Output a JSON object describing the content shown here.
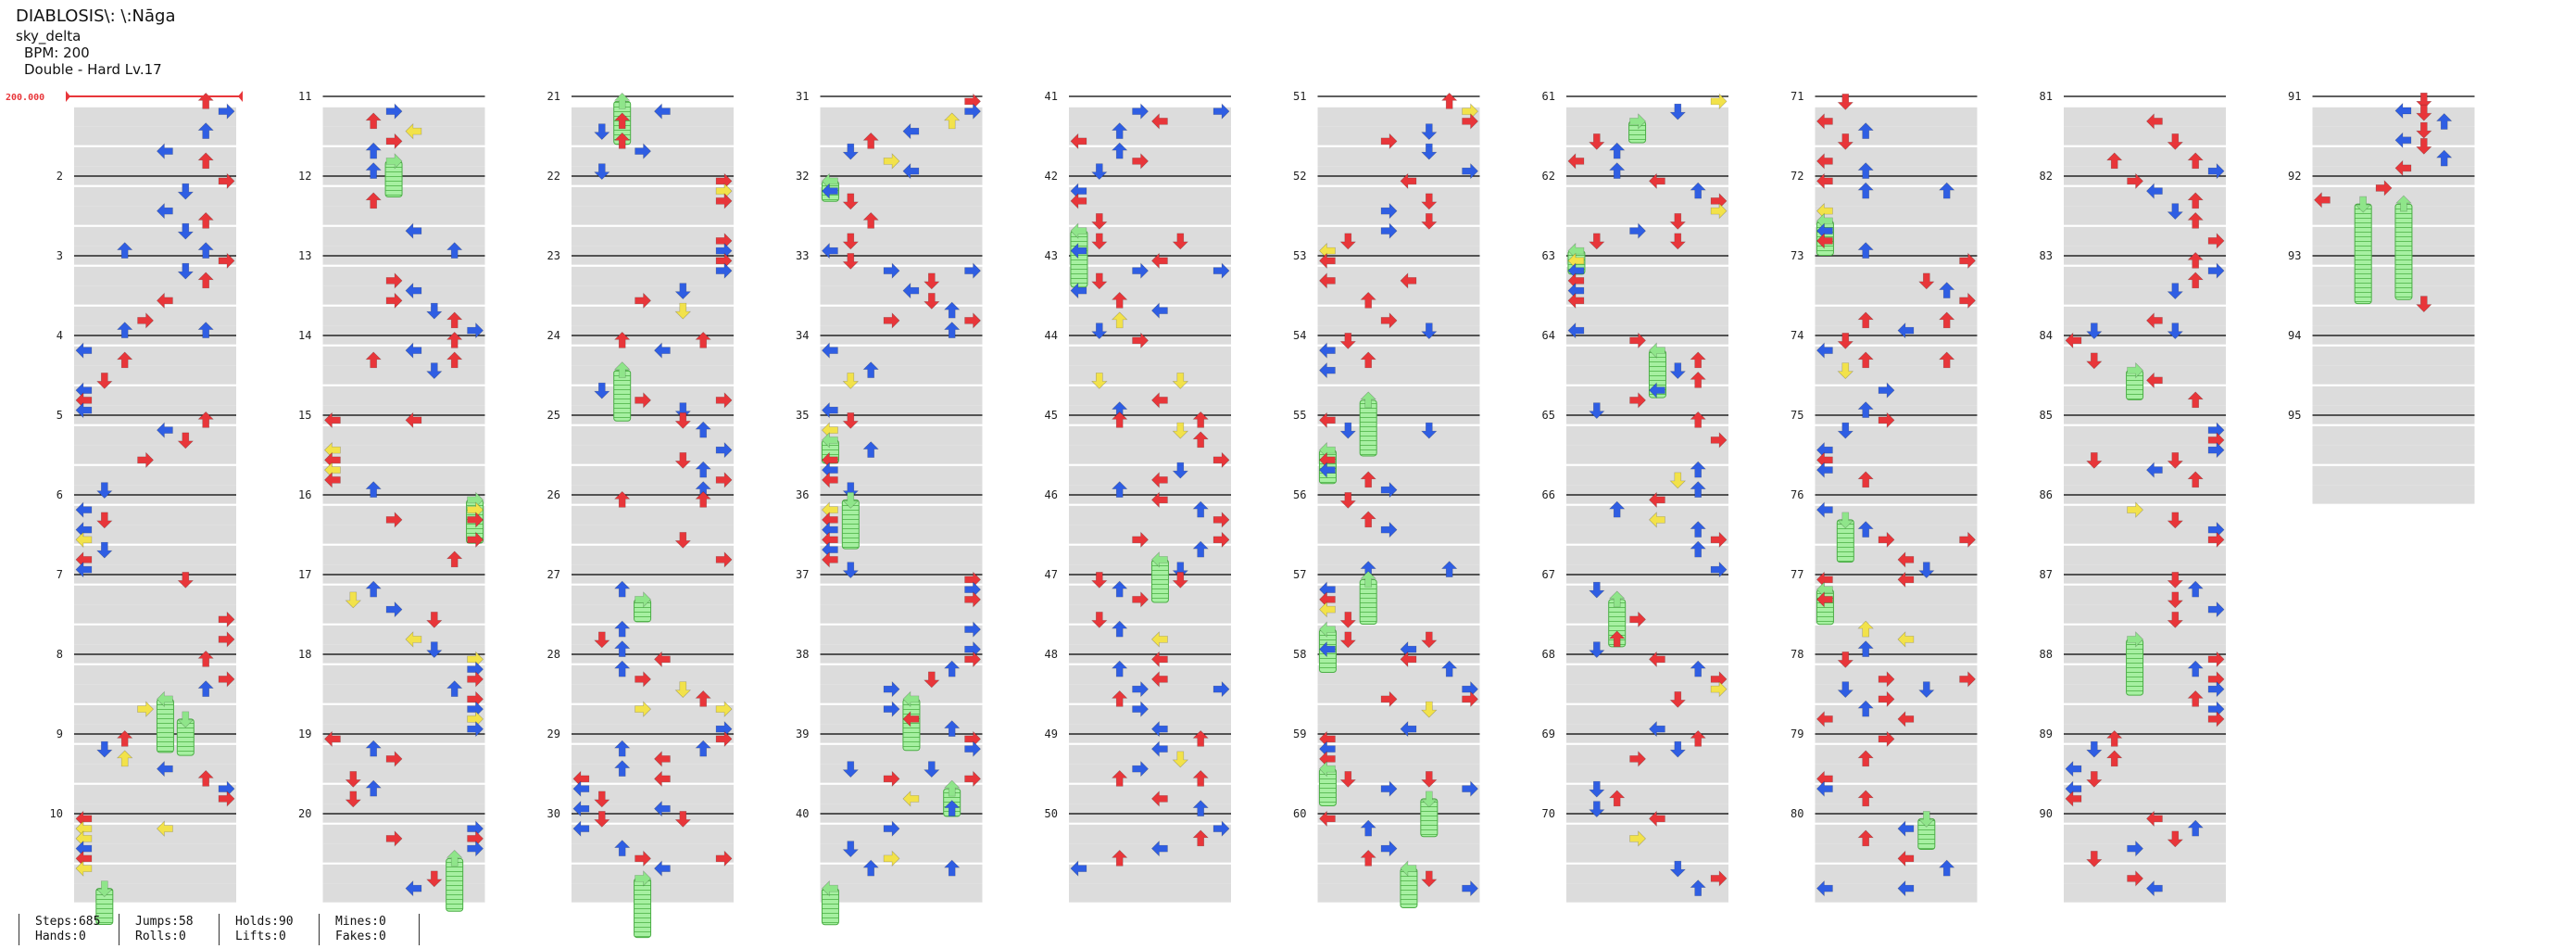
{
  "header": {
    "title": "DIABLOSIS\\: \\:Nāga",
    "author": "sky_delta",
    "bpm": "BPM: 200",
    "difficulty": "Double - Hard Lv.17"
  },
  "chart_meta": {
    "start_bpm_label": "200.000",
    "measures_per_column": 10,
    "total_measures": 95,
    "lanes": 8,
    "colors": {
      "left_arrow": "#e8363a",
      "right_arrow": "#e8363a",
      "up_arrow": "#2f5ee3",
      "down_arrow": "#2f5ee3",
      "quarter": "#e8363a",
      "eighth": "#2f5ee3",
      "sixteenth": "#f2e24a",
      "twelfth": "#a442e8",
      "hold": "#8fe58a",
      "beat_band": "#dcdcdc",
      "measure_line": "#000000"
    }
  },
  "stats": {
    "steps": "Steps:685",
    "jumps": "Jumps:58",
    "holds": "Holds:90",
    "mines": "Mines:0",
    "hands": "Hands:0",
    "rolls": "Rolls:0",
    "lifts": "Lifts:0",
    "fakes": "Fakes:0"
  }
}
